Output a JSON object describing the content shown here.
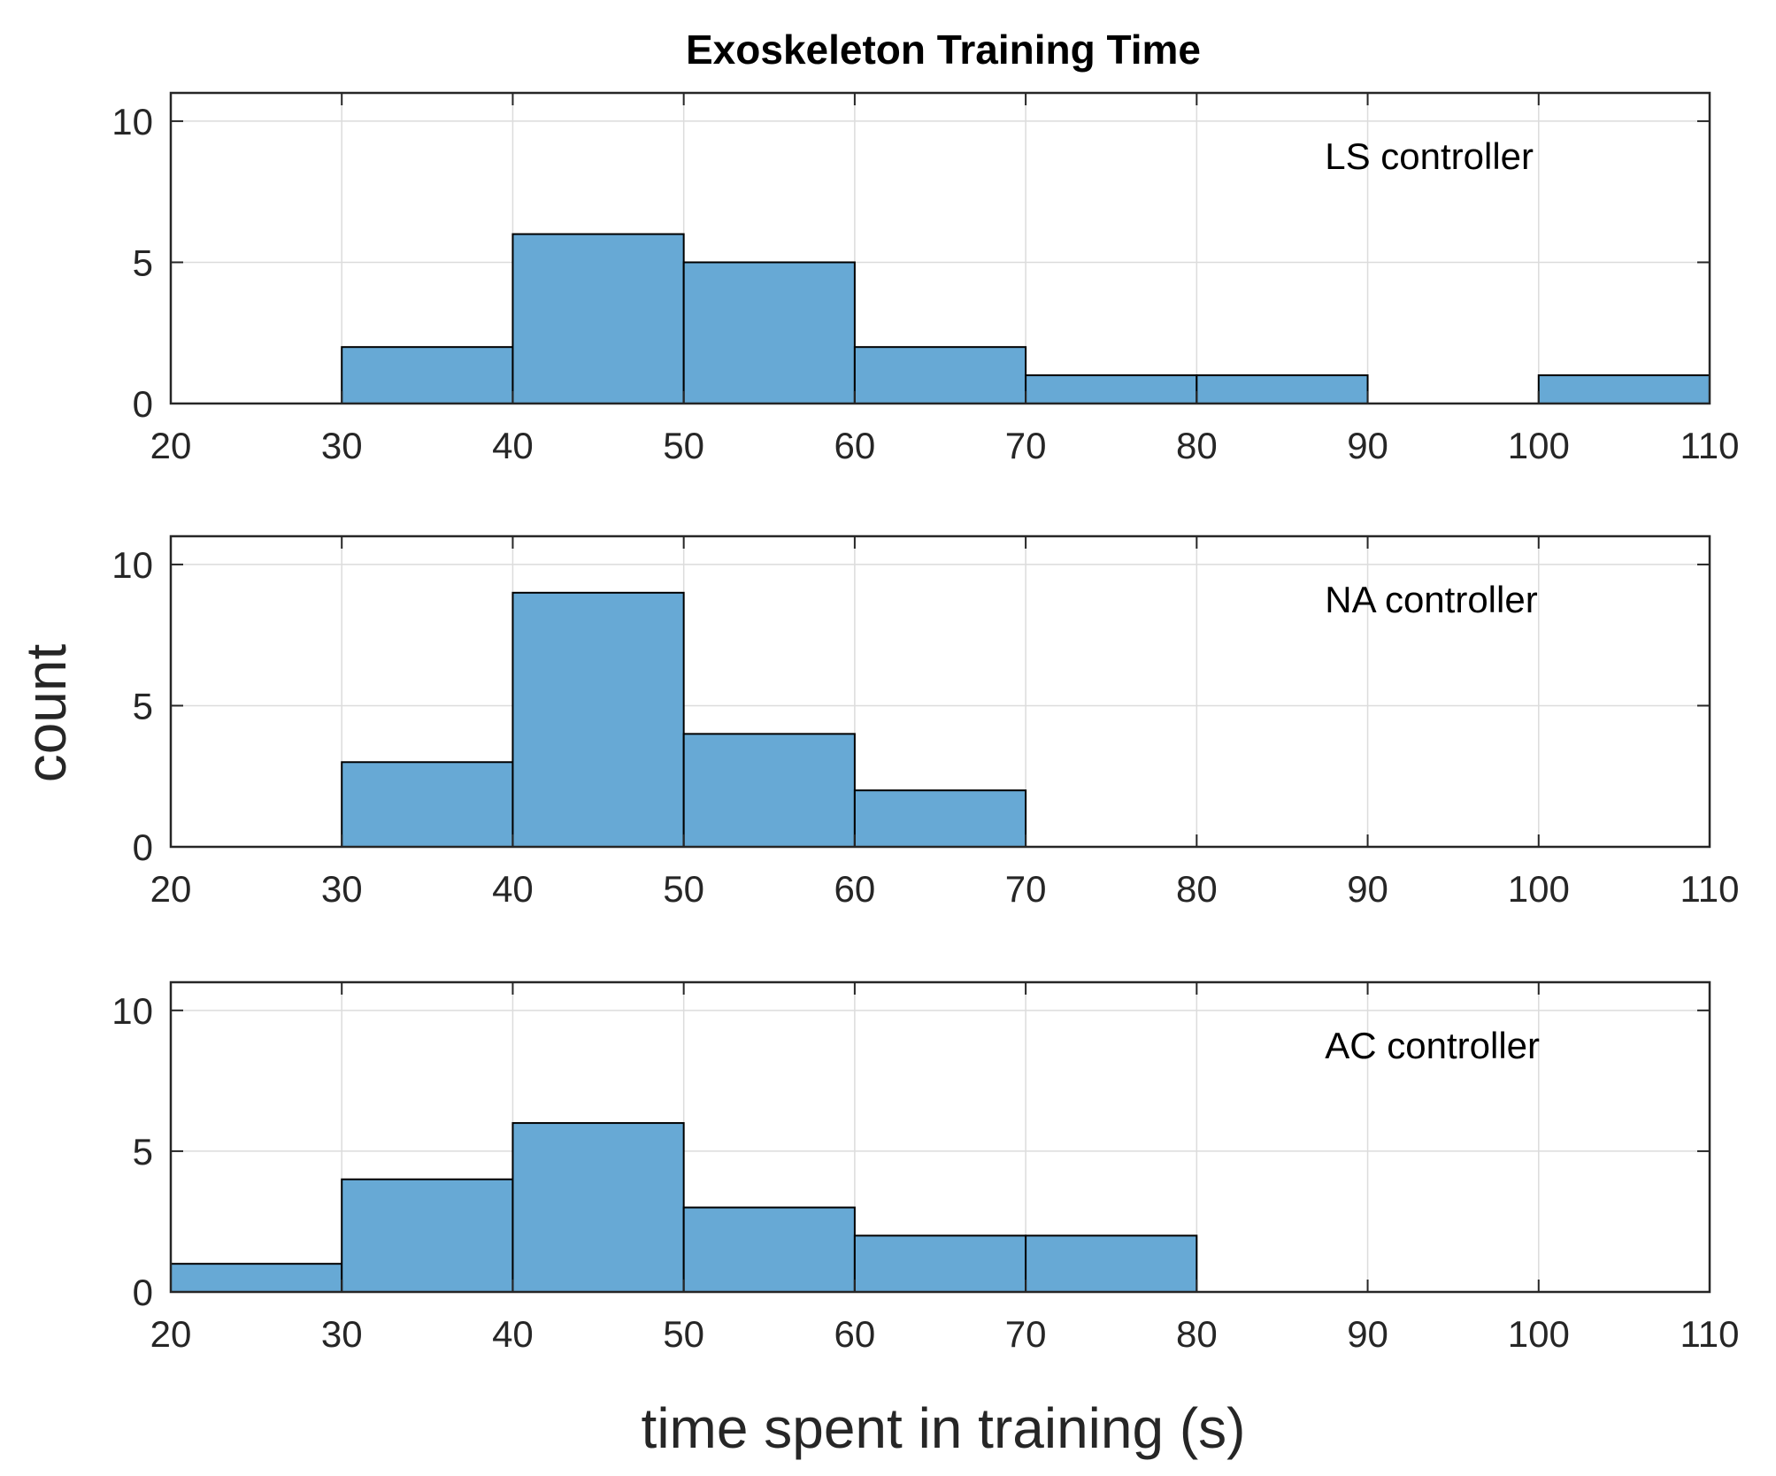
{
  "chart_data": {
    "type": "bar",
    "title": "Exoskeleton Training Time",
    "xlabel": "time spent in training (s)",
    "ylabel": "count",
    "xlim": [
      20,
      110
    ],
    "ylim": [
      0,
      11
    ],
    "xticks": [
      20,
      30,
      40,
      50,
      60,
      70,
      80,
      90,
      100,
      110
    ],
    "yticks": [
      0,
      5,
      10
    ],
    "grid": true,
    "bar_color": "#67a9d5",
    "bin_edges": [
      20,
      30,
      40,
      50,
      60,
      70,
      80,
      90,
      100,
      110
    ],
    "panels": [
      {
        "label": "LS controller",
        "counts": [
          0,
          2,
          6,
          5,
          2,
          1,
          1,
          0,
          1
        ]
      },
      {
        "label": "NA controller",
        "counts": [
          0,
          3,
          9,
          4,
          2,
          0,
          0,
          0,
          0
        ]
      },
      {
        "label": "AC controller",
        "counts": [
          1,
          4,
          6,
          3,
          2,
          2,
          0,
          0,
          0
        ]
      }
    ]
  }
}
